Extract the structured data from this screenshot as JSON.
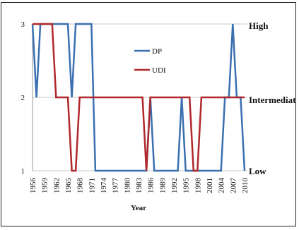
{
  "chart_data": {
    "type": "line",
    "title": "",
    "xlabel": "Year",
    "ylabel": "",
    "x": [
      1956,
      1957,
      1958,
      1959,
      1960,
      1961,
      1962,
      1963,
      1964,
      1965,
      1966,
      1967,
      1968,
      1969,
      1970,
      1971,
      1972,
      1973,
      1974,
      1975,
      1976,
      1977,
      1978,
      1979,
      1980,
      1981,
      1982,
      1983,
      1984,
      1985,
      1986,
      1987,
      1988,
      1989,
      1990,
      1991,
      1992,
      1993,
      1994,
      1995,
      1996,
      1997,
      1998,
      1999,
      2000,
      2001,
      2002,
      2003,
      2004,
      2005,
      2006,
      2007,
      2008,
      2009,
      2010
    ],
    "x_tick_labels": [
      "1956",
      "1959",
      "1962",
      "1965",
      "1968",
      "1971",
      "1974",
      "1977",
      "1980",
      "1983",
      "1986",
      "1989",
      "1992",
      "1995",
      "1998",
      "2001",
      "2004",
      "2007",
      "2010"
    ],
    "ylim": [
      1,
      3
    ],
    "y_ticks": [
      "1",
      "2",
      "3"
    ],
    "level_labels": {
      "high": "High",
      "intermediate": "Intermediat",
      "low": "Low"
    },
    "grid": "horizontal",
    "legend_placement": "upper-center",
    "series": [
      {
        "name": "DP",
        "color": "#3a6fb0",
        "values": [
          3,
          2,
          3,
          3,
          3,
          3,
          3,
          3,
          3,
          3,
          2,
          3,
          3,
          3,
          3,
          3,
          1,
          1,
          1,
          1,
          1,
          1,
          1,
          1,
          1,
          1,
          1,
          1,
          1,
          1,
          2,
          1,
          1,
          1,
          1,
          1,
          1,
          1,
          2,
          1,
          1,
          1,
          1,
          1,
          1,
          1,
          1,
          1,
          1,
          2,
          2,
          3,
          2,
          2,
          1
        ]
      },
      {
        "name": "UDI",
        "color": "#b0282c",
        "values": [
          3,
          3,
          3,
          3,
          3,
          3,
          2,
          2,
          2,
          2,
          1,
          1,
          2,
          2,
          2,
          2,
          2,
          2,
          2,
          2,
          2,
          2,
          2,
          2,
          2,
          2,
          2,
          2,
          2,
          1,
          2,
          2,
          2,
          2,
          2,
          2,
          2,
          2,
          2,
          2,
          2,
          1,
          1,
          2,
          2,
          2,
          2,
          2,
          2,
          2,
          2,
          2,
          2,
          2,
          2
        ]
      }
    ]
  }
}
